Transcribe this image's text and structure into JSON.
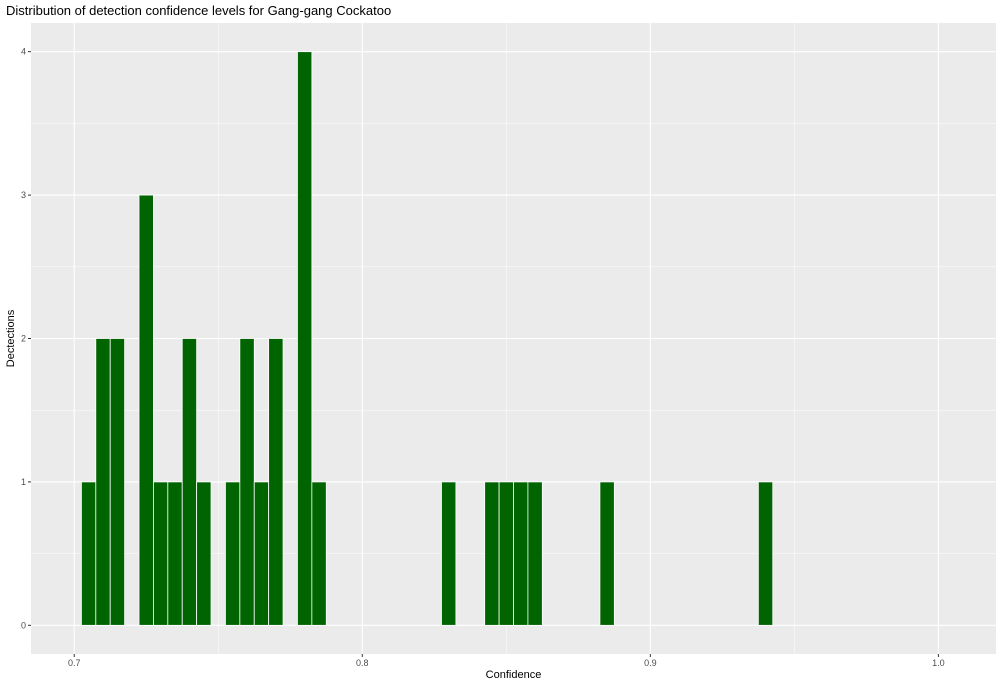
{
  "chart_data": {
    "type": "bar",
    "title": "Distribution of detection confidence levels for Gang-gang Cockatoo",
    "xlabel": "Confidence",
    "ylabel": "Dectections",
    "xlim": [
      0.685,
      1.02
    ],
    "ylim": [
      -0.2,
      4.2
    ],
    "x_ticks": [
      0.7,
      0.8,
      0.9,
      1.0
    ],
    "x_tick_labels": [
      "0.7",
      "0.8",
      "0.9",
      "1.0"
    ],
    "y_ticks": [
      0,
      1,
      2,
      3,
      4
    ],
    "y_tick_labels": [
      "0",
      "1",
      "2",
      "3",
      "4"
    ],
    "bin_width": 0.005,
    "bins": [
      {
        "x": 0.705,
        "count": 1
      },
      {
        "x": 0.71,
        "count": 2
      },
      {
        "x": 0.715,
        "count": 2
      },
      {
        "x": 0.725,
        "count": 3
      },
      {
        "x": 0.73,
        "count": 1
      },
      {
        "x": 0.735,
        "count": 1
      },
      {
        "x": 0.74,
        "count": 2
      },
      {
        "x": 0.745,
        "count": 1
      },
      {
        "x": 0.755,
        "count": 1
      },
      {
        "x": 0.76,
        "count": 2
      },
      {
        "x": 0.765,
        "count": 1
      },
      {
        "x": 0.77,
        "count": 2
      },
      {
        "x": 0.78,
        "count": 4
      },
      {
        "x": 0.785,
        "count": 1
      },
      {
        "x": 0.83,
        "count": 1
      },
      {
        "x": 0.845,
        "count": 1
      },
      {
        "x": 0.85,
        "count": 1
      },
      {
        "x": 0.855,
        "count": 1
      },
      {
        "x": 0.86,
        "count": 1
      },
      {
        "x": 0.885,
        "count": 1
      },
      {
        "x": 0.94,
        "count": 1
      }
    ],
    "grid": true,
    "legend": "none",
    "colors": {
      "bar_fill": "#006400",
      "bar_stroke": "#ffffff",
      "panel_background": "#ebebeb",
      "grid_line": "#ffffff"
    }
  }
}
